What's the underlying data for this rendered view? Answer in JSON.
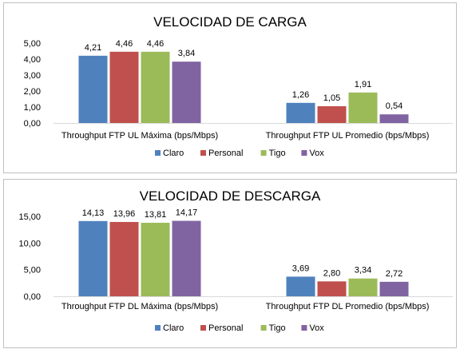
{
  "colors": {
    "Claro": "#4f81bd",
    "Personal": "#c0504d",
    "Tigo": "#9bbb59",
    "Vox": "#8064a2"
  },
  "chart_data": [
    {
      "type": "bar",
      "title": "VELOCIDAD DE CARGA",
      "categories": [
        "Throughput FTP UL Máxima (bps/Mbps)",
        "Throughput FTP UL Promedio (bps/Mbps)"
      ],
      "series": [
        {
          "name": "Claro",
          "values": [
            4.21,
            1.26
          ],
          "labels": [
            "4,21",
            "1,26"
          ]
        },
        {
          "name": "Personal",
          "values": [
            4.46,
            1.05
          ],
          "labels": [
            "4,46",
            "1,05"
          ]
        },
        {
          "name": "Tigo",
          "values": [
            4.46,
            1.91
          ],
          "labels": [
            "4,46",
            "1,91"
          ]
        },
        {
          "name": "Vox",
          "values": [
            3.84,
            0.54
          ],
          "labels": [
            "3,84",
            "0,54"
          ]
        }
      ],
      "ylim": [
        0,
        5
      ],
      "yticks": [
        0,
        1,
        2,
        3,
        4,
        5
      ],
      "ytick_labels": [
        "0,00",
        "1,00",
        "2,00",
        "3,00",
        "4,00",
        "5,00"
      ],
      "grid": false,
      "legend": "bottom"
    },
    {
      "type": "bar",
      "title": "VELOCIDAD DE DESCARGA",
      "categories": [
        "Throughput FTP DL Máxima (bps/Mbps)",
        "Throughput FTP DL Promedio (bps/Mbps)"
      ],
      "series": [
        {
          "name": "Claro",
          "values": [
            14.13,
            3.69
          ],
          "labels": [
            "14,13",
            "3,69"
          ]
        },
        {
          "name": "Personal",
          "values": [
            13.96,
            2.8
          ],
          "labels": [
            "13,96",
            "2,80"
          ]
        },
        {
          "name": "Tigo",
          "values": [
            13.81,
            3.34
          ],
          "labels": [
            "13,81",
            "3,34"
          ]
        },
        {
          "name": "Vox",
          "values": [
            14.17,
            2.72
          ],
          "labels": [
            "14,17",
            "2,72"
          ]
        }
      ],
      "ylim": [
        0,
        15
      ],
      "yticks": [
        0,
        5,
        10,
        15
      ],
      "ytick_labels": [
        "0,00",
        "5,00",
        "10,00",
        "15,00"
      ],
      "grid": false,
      "legend": "bottom"
    }
  ]
}
